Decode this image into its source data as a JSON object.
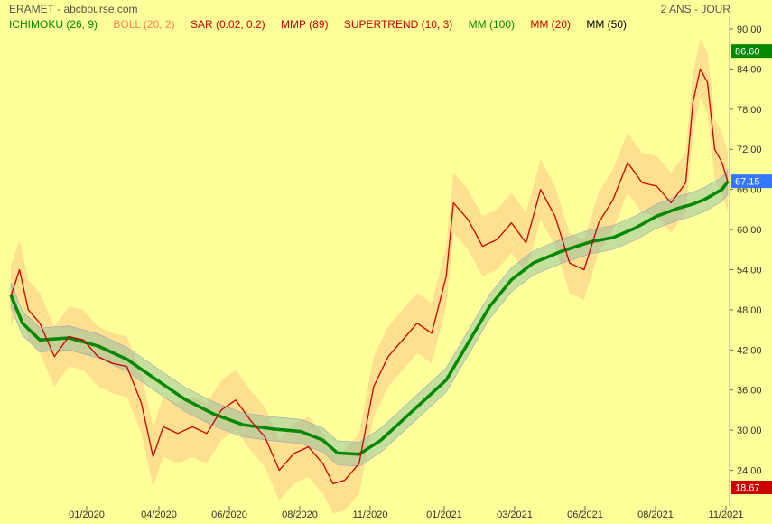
{
  "header": {
    "title": "ERAMET - abcbourse.com",
    "period": "2 ANS - JOUR"
  },
  "legend": [
    {
      "label": "ICHIMOKU (26, 9)",
      "color": "#008800"
    },
    {
      "label": "BOLL (20, 2)",
      "color": "#ff7f50"
    },
    {
      "label": "SAR (0.02, 0.2)",
      "color": "#cc0000"
    },
    {
      "label": "MMP (89)",
      "color": "#cc0000"
    },
    {
      "label": "SUPERTREND (10, 3)",
      "color": "#cc0000"
    },
    {
      "label": "MM (100)",
      "color": "#008800"
    },
    {
      "label": "MM (20)",
      "color": "#cc0000"
    },
    {
      "label": "MM (50)",
      "color": "#000000"
    }
  ],
  "price_tags": [
    {
      "value": "86.60",
      "color": "#008800"
    },
    {
      "value": "67.15",
      "color": "#3377ff"
    },
    {
      "value": "18.67",
      "color": "#cc0000"
    }
  ],
  "chart_data": {
    "type": "line",
    "y_ticks": [
      "90.00",
      "84.00",
      "78.00",
      "72.00",
      "66.00",
      "60.00",
      "54.00",
      "48.00",
      "42.00",
      "36.00",
      "30.00",
      "24.00"
    ],
    "ylim": [
      18.67,
      90
    ],
    "x_ticks": [
      "01/2020",
      "04/2020",
      "06/2020",
      "08/2020",
      "11/2020",
      "01/2021",
      "03/2021",
      "06/2021",
      "08/2021",
      "11/2021"
    ],
    "series": [
      {
        "name": "MM (100)",
        "color": "#008800",
        "points": [
          [
            0,
            50.2
          ],
          [
            8,
            46
          ],
          [
            20,
            43.5
          ],
          [
            40,
            43.8
          ],
          [
            60,
            42.6
          ],
          [
            80,
            40.6
          ],
          [
            100,
            37.6
          ],
          [
            120,
            34.6
          ],
          [
            140,
            32.4
          ],
          [
            160,
            30.8
          ],
          [
            180,
            30.2
          ],
          [
            200,
            29.8
          ],
          [
            215,
            28.5
          ],
          [
            225,
            26.6
          ],
          [
            240,
            26.4
          ],
          [
            255,
            28.5
          ],
          [
            270,
            31.5
          ],
          [
            285,
            34.5
          ],
          [
            300,
            37.5
          ],
          [
            315,
            43
          ],
          [
            330,
            48.5
          ],
          [
            345,
            52.5
          ],
          [
            360,
            55
          ],
          [
            380,
            56.8
          ],
          [
            400,
            58.2
          ],
          [
            415,
            58.8
          ],
          [
            430,
            60.2
          ],
          [
            445,
            62
          ],
          [
            460,
            63.2
          ],
          [
            470,
            63.8
          ],
          [
            478,
            64.5
          ],
          [
            490,
            66
          ],
          [
            494,
            67.15
          ]
        ]
      },
      {
        "name": "",
        "color": "#cc0000",
        "points": [
          [
            0,
            50
          ],
          [
            6,
            54
          ],
          [
            12,
            48
          ],
          [
            20,
            46
          ],
          [
            30,
            41
          ],
          [
            40,
            44
          ],
          [
            50,
            43.5
          ],
          [
            60,
            41
          ],
          [
            70,
            40
          ],
          [
            80,
            39.5
          ],
          [
            90,
            34
          ],
          [
            98,
            26
          ],
          [
            105,
            30.5
          ],
          [
            115,
            29.5
          ],
          [
            125,
            30.5
          ],
          [
            135,
            29.5
          ],
          [
            145,
            33
          ],
          [
            155,
            34.5
          ],
          [
            165,
            31.5
          ],
          [
            175,
            29
          ],
          [
            185,
            24
          ],
          [
            195,
            26.5
          ],
          [
            205,
            27.5
          ],
          [
            215,
            25
          ],
          [
            222,
            22
          ],
          [
            230,
            22.5
          ],
          [
            240,
            25
          ],
          [
            250,
            36.5
          ],
          [
            260,
            41
          ],
          [
            270,
            43.5
          ],
          [
            280,
            46
          ],
          [
            290,
            44.5
          ],
          [
            300,
            53
          ],
          [
            305,
            64
          ],
          [
            315,
            61.5
          ],
          [
            325,
            57.5
          ],
          [
            335,
            58.5
          ],
          [
            345,
            61
          ],
          [
            355,
            58
          ],
          [
            365,
            66
          ],
          [
            375,
            62
          ],
          [
            385,
            55
          ],
          [
            395,
            54
          ],
          [
            405,
            61
          ],
          [
            415,
            64.5
          ],
          [
            425,
            70
          ],
          [
            435,
            67
          ],
          [
            445,
            66.5
          ],
          [
            455,
            64
          ],
          [
            465,
            67
          ],
          [
            470,
            79
          ],
          [
            475,
            84
          ],
          [
            480,
            82
          ],
          [
            485,
            72
          ],
          [
            490,
            70
          ],
          [
            494,
            67.15
          ]
        ]
      }
    ]
  }
}
